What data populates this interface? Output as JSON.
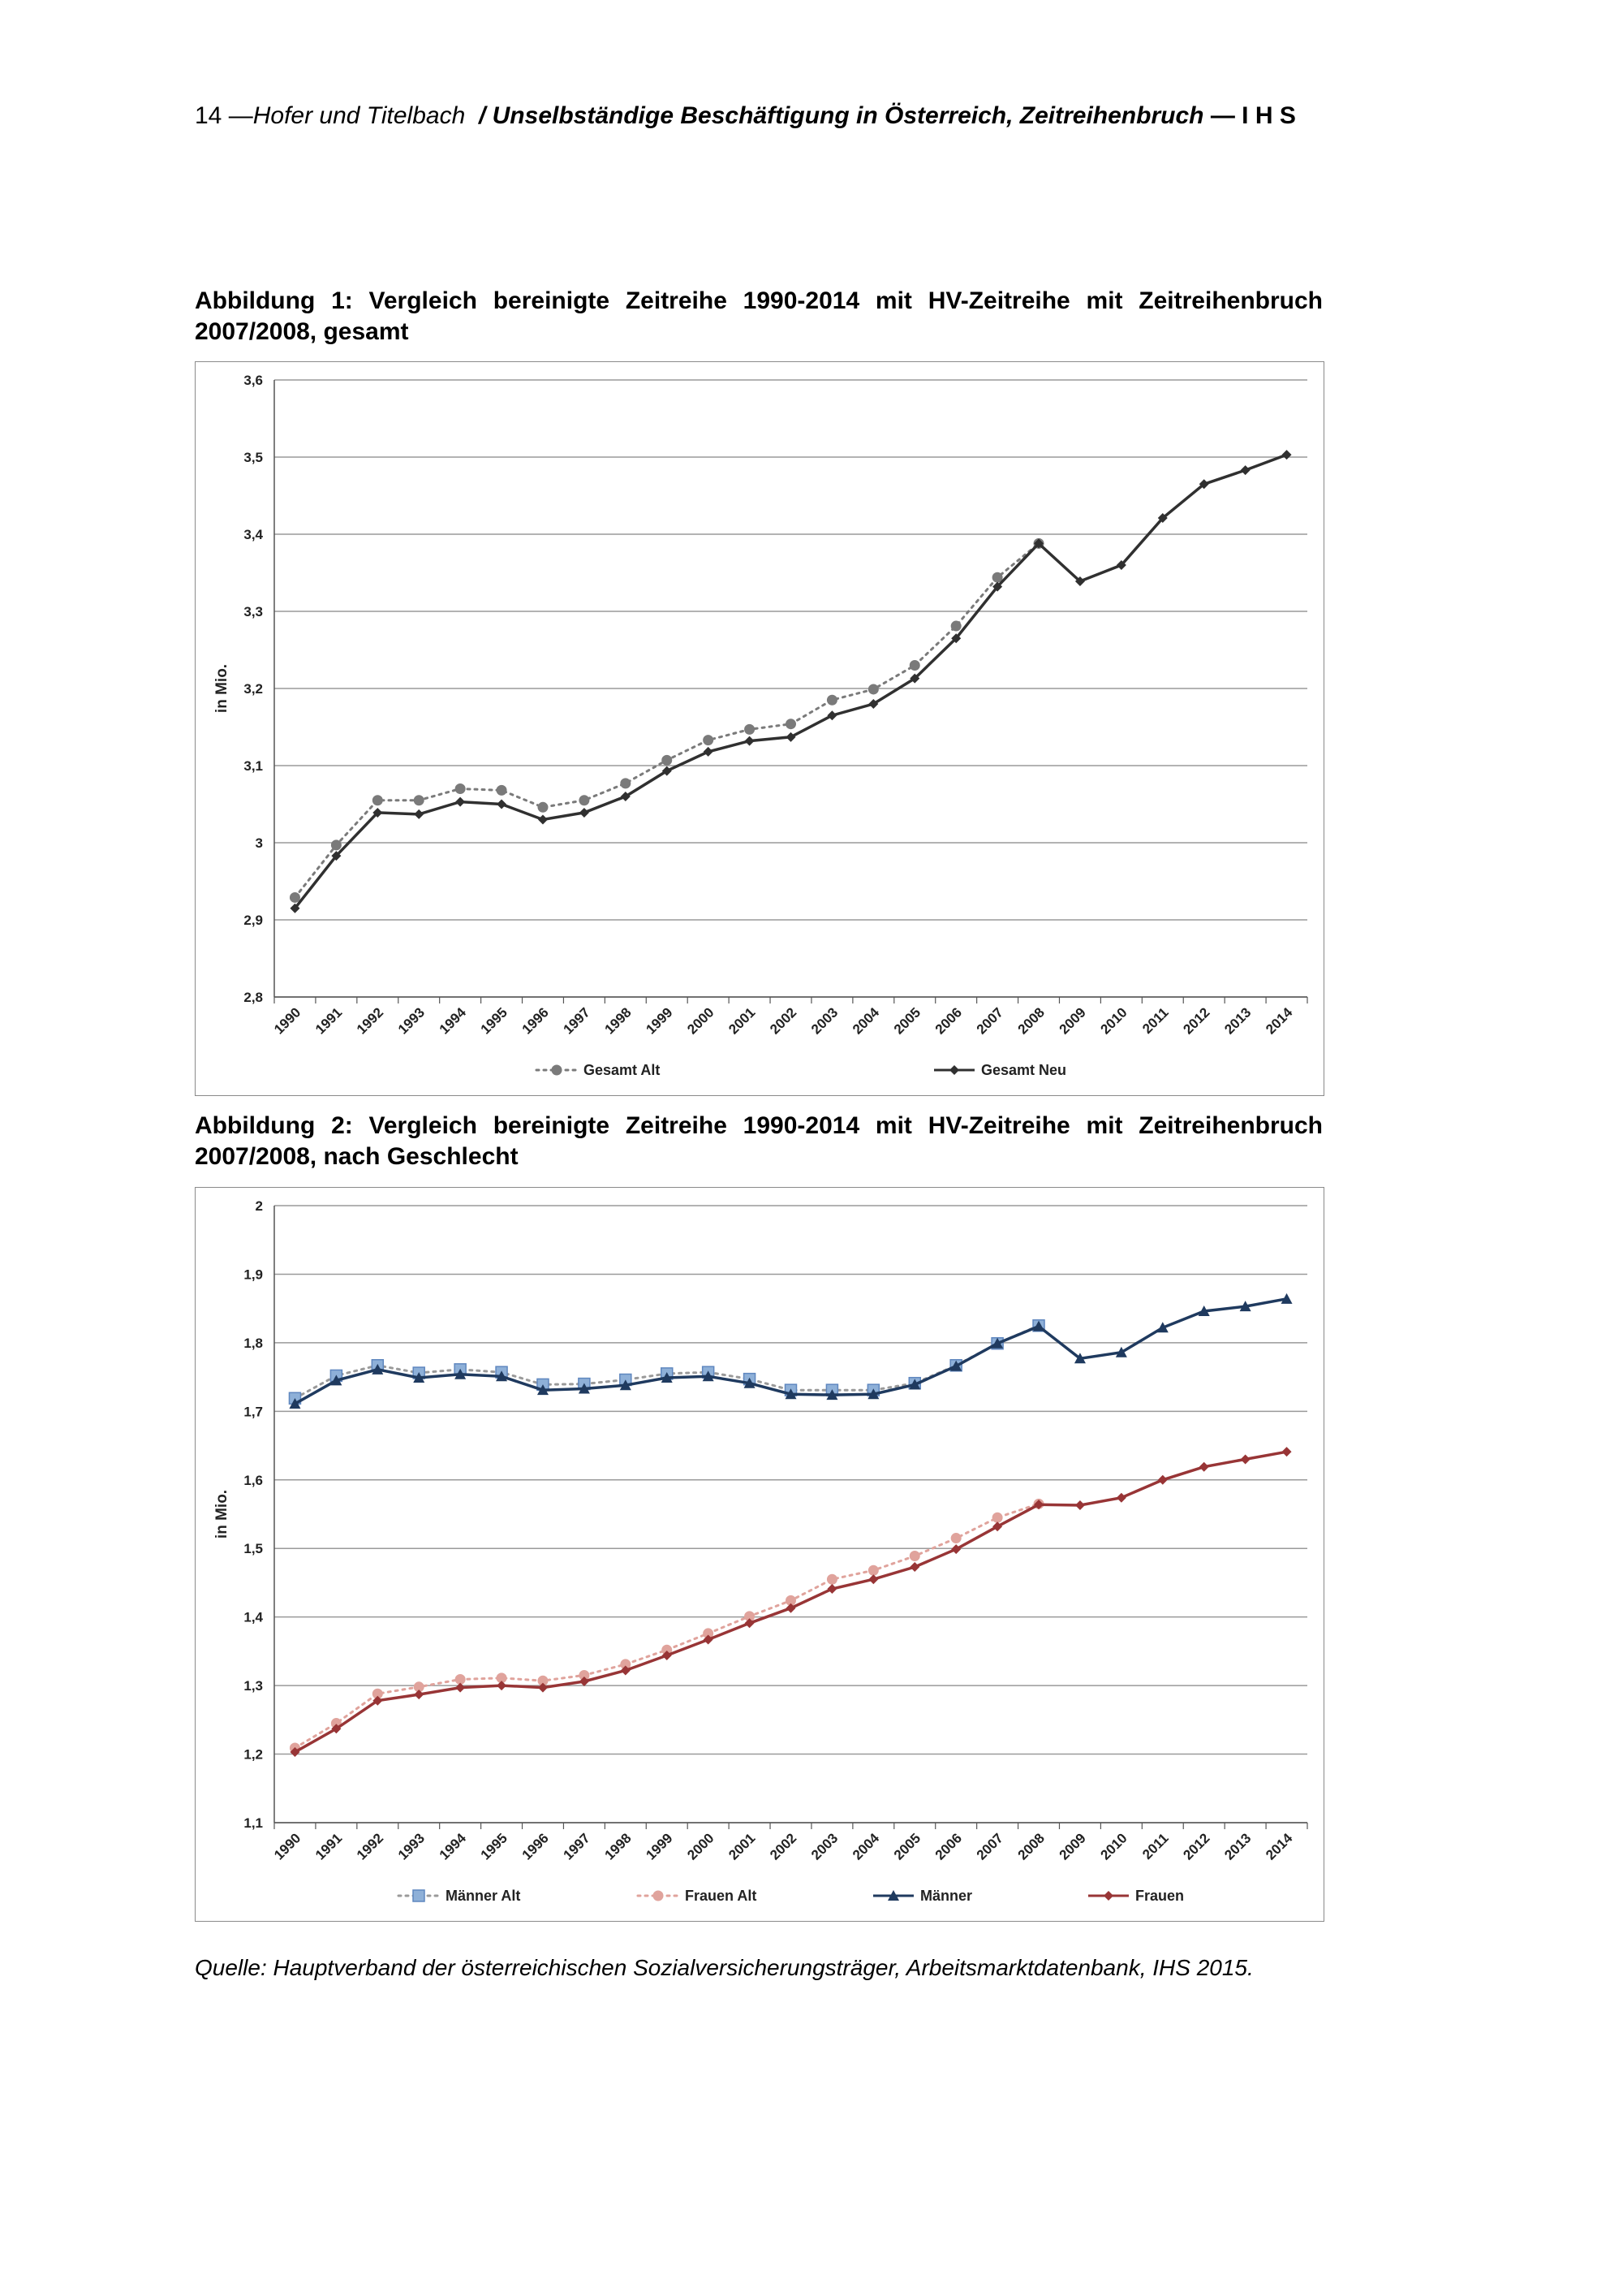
{
  "header": {
    "page_number": "14",
    "separator": "—",
    "authors": "Hofer und Titelbach",
    "slash": "/",
    "title": "Unselbständige Beschäftigung in Österreich, Zeitreihenbruch",
    "institute": "— I H S"
  },
  "figure1": {
    "caption": "Abbildung 1: Vergleich bereinigte Zeitreihe 1990-2014 mit HV-Zeitreihe mit Zeitreihenbruch 2007/2008, gesamt"
  },
  "figure2": {
    "caption": "Abbildung 2: Vergleich bereinigte Zeitreihe 1990-2014 mit HV-Zeitreihe mit Zeitreihenbruch 2007/2008, nach Geschlecht"
  },
  "source": "Quelle: Hauptverband der österreichischen Sozialversicherungsträger, Arbeitsmarktdatenbank, IHS 2015.",
  "chart_data": [
    {
      "type": "line",
      "title": "",
      "xlabel": "",
      "ylabel": "in Mio.",
      "ylim": [
        2.8,
        3.6
      ],
      "yticks": [
        2.8,
        2.9,
        3.0,
        3.1,
        3.2,
        3.3,
        3.4,
        3.5,
        3.6
      ],
      "ytick_labels": [
        "2,8",
        "2,9",
        "3",
        "3,1",
        "3,2",
        "3,3",
        "3,4",
        "3,5",
        "3,6"
      ],
      "grid": true,
      "legend": "bottom",
      "categories": [
        "1990",
        "1991",
        "1992",
        "1993",
        "1994",
        "1995",
        "1996",
        "1997",
        "1998",
        "1999",
        "2000",
        "2001",
        "2002",
        "2003",
        "2004",
        "2005",
        "2006",
        "2007",
        "2008",
        "2009",
        "2010",
        "2011",
        "2012",
        "2013",
        "2014"
      ],
      "series": [
        {
          "name": "Gesamt Alt",
          "style": "dotted",
          "marker": "circle",
          "color": "#7a7a7a",
          "values": [
            2.929,
            2.997,
            3.055,
            3.055,
            3.07,
            3.068,
            3.046,
            3.055,
            3.077,
            3.107,
            3.133,
            3.147,
            3.154,
            3.185,
            3.199,
            3.23,
            3.281,
            3.344,
            3.388,
            null,
            null,
            null,
            null,
            null,
            null
          ]
        },
        {
          "name": "Gesamt Neu",
          "style": "solid",
          "marker": "diamond",
          "color": "#303030",
          "values": [
            2.915,
            2.983,
            3.039,
            3.037,
            3.053,
            3.05,
            3.03,
            3.039,
            3.06,
            3.093,
            3.118,
            3.132,
            3.137,
            3.165,
            3.18,
            3.213,
            3.265,
            3.332,
            3.388,
            3.339,
            3.36,
            3.421,
            3.465,
            3.483,
            3.503
          ]
        }
      ]
    },
    {
      "type": "line",
      "title": "",
      "xlabel": "",
      "ylabel": "in Mio.",
      "ylim": [
        1.1,
        2.0
      ],
      "yticks": [
        1.1,
        1.2,
        1.3,
        1.4,
        1.5,
        1.6,
        1.7,
        1.8,
        1.9,
        2.0
      ],
      "ytick_labels": [
        "1,1",
        "1,2",
        "1,3",
        "1,4",
        "1,5",
        "1,6",
        "1,7",
        "1,8",
        "1,9",
        "2"
      ],
      "grid": true,
      "legend": "bottom",
      "categories": [
        "1990",
        "1991",
        "1992",
        "1993",
        "1994",
        "1995",
        "1996",
        "1997",
        "1998",
        "1999",
        "2000",
        "2001",
        "2002",
        "2003",
        "2004",
        "2005",
        "2006",
        "2007",
        "2008",
        "2009",
        "2010",
        "2011",
        "2012",
        "2013",
        "2014"
      ],
      "series": [
        {
          "name": "Männer Alt",
          "style": "dotted",
          "marker": "square",
          "color": "#8eb0d8",
          "line_color": "#9a9a9a",
          "values": [
            1.719,
            1.752,
            1.767,
            1.756,
            1.761,
            1.757,
            1.739,
            1.74,
            1.746,
            1.755,
            1.757,
            1.747,
            1.731,
            1.731,
            1.731,
            1.741,
            1.767,
            1.799,
            1.825,
            null,
            null,
            null,
            null,
            null,
            null
          ]
        },
        {
          "name": "Frauen Alt",
          "style": "dotted",
          "marker": "circle",
          "color": "#e0a39c",
          "line_color": "#e0a39c",
          "values": [
            1.209,
            1.245,
            1.288,
            1.298,
            1.309,
            1.311,
            1.307,
            1.315,
            1.331,
            1.352,
            1.376,
            1.401,
            1.424,
            1.455,
            1.468,
            1.489,
            1.515,
            1.545,
            1.565,
            null,
            null,
            null,
            null,
            null,
            null
          ]
        },
        {
          "name": "Männer",
          "style": "solid",
          "marker": "triangle",
          "color": "#1f3a5f",
          "line_color": "#1f3a5f",
          "values": [
            1.711,
            1.745,
            1.761,
            1.749,
            1.754,
            1.751,
            1.731,
            1.733,
            1.738,
            1.749,
            1.751,
            1.741,
            1.725,
            1.724,
            1.725,
            1.739,
            1.766,
            1.799,
            1.824,
            1.777,
            1.786,
            1.822,
            1.846,
            1.853,
            1.864
          ]
        },
        {
          "name": "Frauen",
          "style": "solid",
          "marker": "diamond",
          "color": "#983536",
          "line_color": "#983536",
          "values": [
            1.203,
            1.237,
            1.278,
            1.287,
            1.297,
            1.3,
            1.297,
            1.306,
            1.322,
            1.344,
            1.367,
            1.391,
            1.413,
            1.441,
            1.455,
            1.473,
            1.499,
            1.532,
            1.564,
            1.563,
            1.574,
            1.6,
            1.619,
            1.63,
            1.641
          ]
        }
      ]
    }
  ]
}
